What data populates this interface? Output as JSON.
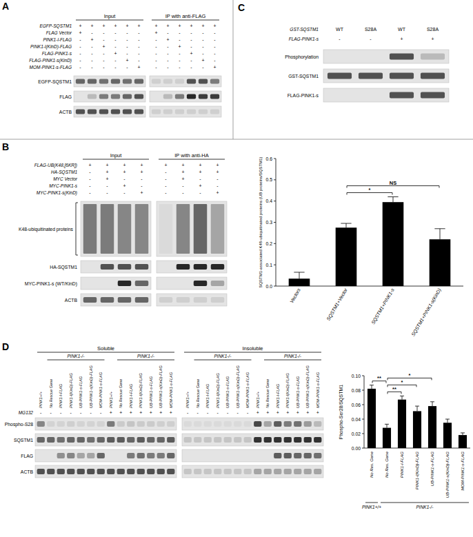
{
  "panels": {
    "A": {
      "label": "A",
      "groups": [
        "Input",
        "IP with anti-FLAG"
      ],
      "conditions": [
        {
          "label": "EGFP-SQSTM1",
          "signs": [
            "+",
            "+",
            "+",
            "+",
            "+",
            "+",
            "+",
            "+",
            "+",
            "+",
            "+",
            "+"
          ]
        },
        {
          "label": "FLAG Vector",
          "signs": [
            "+",
            "-",
            "-",
            "-",
            "-",
            "-",
            "+",
            "-",
            "-",
            "-",
            "-",
            "-"
          ]
        },
        {
          "label": "PINK1-l-FLAG",
          "signs": [
            "-",
            "+",
            "-",
            "-",
            "-",
            "-",
            "-",
            "+",
            "-",
            "-",
            "-",
            "-"
          ]
        },
        {
          "label": "PINK1-l(KinD)-FLAG",
          "signs": [
            "-",
            "-",
            "+",
            "-",
            "-",
            "-",
            "-",
            "-",
            "+",
            "-",
            "-",
            "-"
          ]
        },
        {
          "label": "FLAG-PINK1-s",
          "signs": [
            "-",
            "-",
            "-",
            "+",
            "-",
            "-",
            "-",
            "-",
            "-",
            "+",
            "-",
            "-"
          ]
        },
        {
          "label": "FLAG-PINK1-s(KinD)",
          "signs": [
            "-",
            "-",
            "-",
            "-",
            "+",
            "-",
            "-",
            "-",
            "-",
            "-",
            "+",
            "-"
          ]
        },
        {
          "label": "MOM-PINK1-s-FLAG",
          "signs": [
            "-",
            "-",
            "-",
            "-",
            "-",
            "+",
            "-",
            "-",
            "-",
            "-",
            "-",
            "+"
          ]
        }
      ],
      "blots": [
        {
          "label": "EGFP-SQSTM1",
          "bands": [
            0.6,
            0.6,
            0.55,
            0.6,
            0.55,
            0.6,
            0.1,
            0.1,
            0.1,
            0.7,
            0.7,
            0.5
          ]
        },
        {
          "label": "FLAG",
          "bands": [
            0,
            0.2,
            0.5,
            0.5,
            0.6,
            0.7,
            0,
            0.2,
            0.5,
            0.9,
            0.8,
            0.8
          ]
        },
        {
          "label": "ACTB",
          "bands": [
            0.7,
            0.7,
            0.7,
            0.7,
            0.7,
            0.7,
            0.1,
            0.1,
            0.1,
            0.1,
            0.1,
            0.1
          ]
        }
      ]
    },
    "B": {
      "label": "B",
      "groups": [
        "Input",
        "IP with anti-HA"
      ],
      "conditions": [
        {
          "label": "FLAG-UB(K48,[6KR])",
          "signs": [
            "+",
            "+",
            "+",
            "+",
            "+",
            "+",
            "+",
            "+"
          ]
        },
        {
          "label": "HA-SQSTM1",
          "signs": [
            "-",
            "+",
            "+",
            "+",
            "-",
            "+",
            "+",
            "+"
          ]
        },
        {
          "label": "MYC Vector",
          "signs": [
            "-",
            "+",
            "-",
            "-",
            "-",
            "+",
            "-",
            "-"
          ]
        },
        {
          "label": "MYC-PINK1-s",
          "signs": [
            "-",
            "-",
            "+",
            "-",
            "-",
            "-",
            "+",
            "-"
          ]
        },
        {
          "label": "MYC-PINK1-s(KinD)",
          "signs": [
            "-",
            "-",
            "-",
            "+",
            "-",
            "-",
            "-",
            "+"
          ]
        }
      ],
      "blots": [
        {
          "label": "K48-ubiquitinated proteins",
          "style": "smear",
          "bands": [
            0.5,
            0.5,
            0.45,
            0.45,
            0.05,
            0.45,
            0.6,
            0.3
          ]
        },
        {
          "label": "HA-SQSTM1",
          "bands": [
            0,
            0.7,
            0.7,
            0.7,
            0,
            0.9,
            0.9,
            0.9
          ]
        },
        {
          "label": "MYC-PINK1-s (WT/KinD)",
          "bands": [
            0,
            0,
            0.9,
            0.6,
            0,
            0,
            0.9,
            0.3
          ]
        },
        {
          "label": "ACTB",
          "bands": [
            0.6,
            0.6,
            0.6,
            0.6,
            0.1,
            0.1,
            0.1,
            0.1
          ]
        }
      ]
    },
    "C": {
      "label": "C",
      "conditions": [
        {
          "label": "GST-SQSTM1",
          "signs": [
            "WT",
            "S28A",
            "WT",
            "S28A"
          ]
        },
        {
          "label": "FLAG-PINK1-s",
          "signs": [
            "-",
            "-",
            "+",
            "+"
          ]
        }
      ],
      "blots": [
        {
          "label": "Phosphorylation",
          "bands": [
            0,
            0,
            0.7,
            0.2
          ]
        },
        {
          "label": "GST-SQSTM1",
          "bands": [
            0.7,
            0.7,
            0.7,
            0.7
          ]
        },
        {
          "label": "FLAG-PINK1-s",
          "bands": [
            0,
            0,
            0.7,
            0.7
          ]
        }
      ]
    },
    "D": {
      "label": "D",
      "sections": [
        {
          "title": "Soluble",
          "spans": [
            {
              "text": "PINK1-/-",
              "from": 1,
              "to": 6
            },
            {
              "text": "PINK1-/-",
              "from": 8,
              "to": 13
            }
          ],
          "lane_labels": [
            "PINK1+/+",
            "No Rescue Gene",
            "PINK1-l-FLAG",
            "PINK1-l(KinD)-FLAG",
            "UB-PINK1-s-FLAG",
            "UB-PINK1-s(KinD)-FLAG",
            "MOM-PINK1-s-FLAG",
            "PINK1+/+",
            "No Rescue Gene",
            "PINK1-l-FLAG",
            "PINK1-l(KinD)-FLAG",
            "UB-PINK1-s-FLAG",
            "UB-PINK1-s(KinD)-FLAG",
            "MOM-PINK1-s-FLAG"
          ]
        },
        {
          "title": "Insoluble",
          "spans": [
            {
              "text": "PINK1-/-",
              "from": 1,
              "to": 6
            },
            {
              "text": "PINK1-/-",
              "from": 8,
              "to": 13
            }
          ],
          "lane_labels": [
            "PINK1+/+",
            "No Rescue Gene",
            "PINK1-l-FLAG",
            "PINK1-l(KinD)-FLAG",
            "UB-PINK1-s-FLAG",
            "UB-PINK1-s(KinD)-FLAG",
            "MOM-PINK1-s-FLAG",
            "PINK1+/+",
            "No Rescue Gene",
            "PINK1-l-FLAG",
            "PINK1-l(KinD)-FLAG",
            "UB-PINK1-s-FLAG",
            "UB-PINK1-s(KinD)-FLAG",
            "MOM-PINK1-s-FLAG"
          ]
        }
      ],
      "conditions": [
        {
          "label": "MG132",
          "signs": [
            "-",
            "-",
            "-",
            "-",
            "-",
            "-",
            "-",
            "+",
            "+",
            "+",
            "+",
            "+",
            "+",
            "+",
            "-",
            "-",
            "-",
            "-",
            "-",
            "-",
            "-",
            "+",
            "+",
            "+",
            "+",
            "+",
            "+",
            "+"
          ]
        }
      ],
      "blots": [
        {
          "label": "Phospho-S28",
          "bands": [
            0.45,
            0.08,
            0.08,
            0.1,
            0.08,
            0.08,
            0.08,
            0.5,
            0.12,
            0.15,
            0.12,
            0.12,
            0.1,
            0.1,
            0.05,
            0.05,
            0.05,
            0.05,
            0.05,
            0.05,
            0.05,
            0.75,
            0.3,
            0.65,
            0.5,
            0.55,
            0.35,
            0.2
          ]
        },
        {
          "label": "SQSTM1",
          "bands": [
            0.6,
            0.6,
            0.55,
            0.6,
            0.6,
            0.55,
            0.6,
            0.65,
            0.65,
            0.6,
            0.65,
            0.6,
            0.6,
            0.65,
            0.15,
            0.15,
            0.15,
            0.15,
            0.15,
            0.15,
            0.15,
            0.85,
            0.85,
            0.85,
            0.85,
            0.85,
            0.85,
            0.85
          ]
        },
        {
          "label": "FLAG",
          "bands": [
            0,
            0,
            0.4,
            0.45,
            0.3,
            0.3,
            0.6,
            0,
            0,
            0.5,
            0.55,
            0.5,
            0.5,
            0.6,
            0,
            0,
            0,
            0,
            0,
            0,
            0,
            0,
            0,
            0.65,
            0.65,
            0.6,
            0.6,
            0.55
          ]
        },
        {
          "label": "ACTB",
          "bands": [
            0.7,
            0.7,
            0.7,
            0.7,
            0.7,
            0.7,
            0.7,
            0.7,
            0.7,
            0.7,
            0.7,
            0.7,
            0.7,
            0.7,
            0.15,
            0.15,
            0.15,
            0.15,
            0.15,
            0.15,
            0.15,
            0.3,
            0.3,
            0.3,
            0.3,
            0.3,
            0.3,
            0.3
          ]
        }
      ]
    }
  },
  "chart_data": [
    {
      "type": "bar",
      "ylabel": "SQSTM1-associated K48-ubiquitinated proteins (UB proteins/SQSTM1)",
      "categories": [
        "Vectors",
        "SQSTM1+Vector",
        "SQSTM1+PINK1-s",
        "SQSTM1+PINK1-s(KinD)"
      ],
      "values": [
        0.035,
        0.275,
        0.395,
        0.22
      ],
      "errors": [
        0.03,
        0.02,
        0.025,
        0.05
      ],
      "color": "#000000",
      "ylim": [
        0,
        0.6
      ],
      "yticks": [
        {
          "value": 0,
          "label": "0.0"
        },
        {
          "value": 0.1,
          "label": "0.1"
        },
        {
          "value": 0.2,
          "label": "0.2"
        },
        {
          "value": 0.3,
          "label": "0.3"
        },
        {
          "value": 0.4,
          "label": "0.4"
        },
        {
          "value": 0.5,
          "label": "0.5"
        },
        {
          "value": 0.6,
          "label": "0.6"
        }
      ],
      "annotations": [
        {
          "text": "*",
          "from": 1,
          "to": 2
        },
        {
          "text": "NS",
          "from": 1,
          "to": 3
        }
      ]
    },
    {
      "type": "bar",
      "ylabel": "Phospho-Ser28/SQSTM1",
      "categories": [
        "No Res. Gene",
        "No Res. Gene",
        "PINK1-l-FLAG",
        "PINK1-l(KinD)-FLAG",
        "UB-PINK1-s-FLAG",
        "UB-PINK1-s(KinD)-FLAG",
        "MOM-PINK1-s-FLAG"
      ],
      "values": [
        0.082,
        0.028,
        0.067,
        0.051,
        0.058,
        0.035,
        0.018
      ],
      "errors": [
        0.005,
        0.005,
        0.005,
        0.007,
        0.006,
        0.005,
        0.003
      ],
      "color": "#000000",
      "ylim": [
        0,
        0.1
      ],
      "yticks": [
        {
          "value": 0,
          "label": "0.00"
        },
        {
          "value": 0.02,
          "label": "0.02"
        },
        {
          "value": 0.04,
          "label": "0.04"
        },
        {
          "value": 0.06,
          "label": "0.06"
        },
        {
          "value": 0.08,
          "label": "0.08"
        },
        {
          "value": 0.1,
          "label": "0.10"
        }
      ],
      "annotations": [
        {
          "text": "**",
          "from": 0,
          "to": 1
        },
        {
          "text": "**",
          "from": 1,
          "to": 2
        },
        {
          "text": "*",
          "from": 1,
          "to": 3
        },
        {
          "text": "*",
          "from": 1,
          "to": 4
        }
      ],
      "groups": [
        {
          "text": "PINK1+/+",
          "from": 0,
          "to": 0
        },
        {
          "text": "PINK1-/-",
          "from": 1,
          "to": 6
        }
      ]
    }
  ]
}
